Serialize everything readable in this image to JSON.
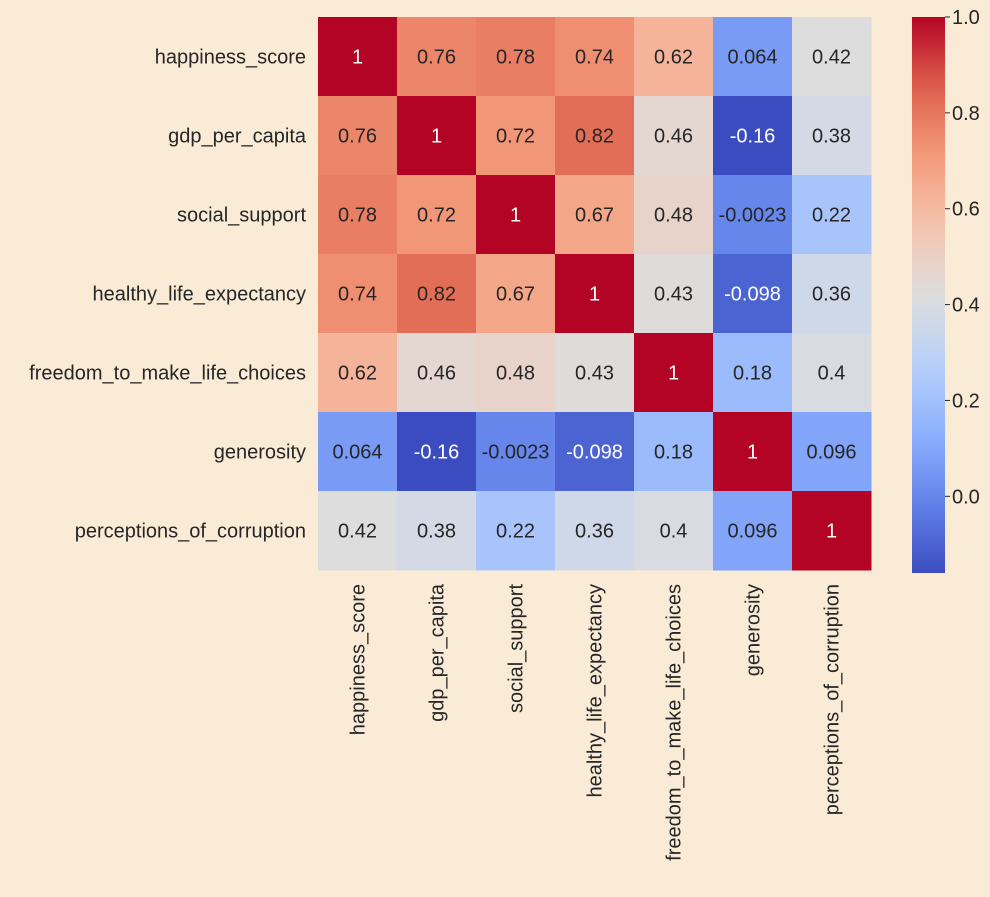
{
  "chart_data": {
    "type": "heatmap",
    "title": "",
    "xlabel": "",
    "ylabel": "",
    "labels": [
      "happiness_score",
      "gdp_per_capita",
      "social_support",
      "healthy_life_expectancy",
      "freedom_to_make_life_choices",
      "generosity",
      "perceptions_of_corruption"
    ],
    "values": [
      [
        1,
        0.76,
        0.78,
        0.74,
        0.62,
        0.064,
        0.42
      ],
      [
        0.76,
        1,
        0.72,
        0.82,
        0.46,
        -0.16,
        0.38
      ],
      [
        0.78,
        0.72,
        1,
        0.67,
        0.48,
        -0.0023,
        0.22
      ],
      [
        0.74,
        0.82,
        0.67,
        1,
        0.43,
        -0.098,
        0.36
      ],
      [
        0.62,
        0.46,
        0.48,
        0.43,
        1,
        0.18,
        0.4
      ],
      [
        0.064,
        -0.16,
        -0.0023,
        -0.098,
        0.18,
        1,
        0.096
      ],
      [
        0.42,
        0.38,
        0.22,
        0.36,
        0.4,
        0.096,
        1
      ]
    ],
    "annotations": [
      [
        "1",
        "0.76",
        "0.78",
        "0.74",
        "0.62",
        "0.064",
        "0.42"
      ],
      [
        "0.76",
        "1",
        "0.72",
        "0.82",
        "0.46",
        "-0.16",
        "0.38"
      ],
      [
        "0.78",
        "0.72",
        "1",
        "0.67",
        "0.48",
        "-0.0023",
        "0.22"
      ],
      [
        "0.74",
        "0.82",
        "0.67",
        "1",
        "0.43",
        "-0.098",
        "0.36"
      ],
      [
        "0.62",
        "0.46",
        "0.48",
        "0.43",
        "1",
        "0.18",
        "0.4"
      ],
      [
        "0.064",
        "-0.16",
        "-0.0023",
        "-0.098",
        "0.18",
        "1",
        "0.096"
      ],
      [
        "0.42",
        "0.38",
        "0.22",
        "0.36",
        "0.4",
        "0.096",
        "1"
      ]
    ],
    "colormap": "coolwarm",
    "vmin": -0.16,
    "vmax": 1,
    "colorbar": {
      "ticks": [
        0.0,
        0.2,
        0.4,
        0.6,
        0.8,
        1.0
      ],
      "tick_labels": [
        "0.0",
        "0.2",
        "0.4",
        "0.6",
        "0.8",
        "1.0"
      ]
    },
    "background_color": "#faebd7",
    "label_color": "#262626"
  }
}
